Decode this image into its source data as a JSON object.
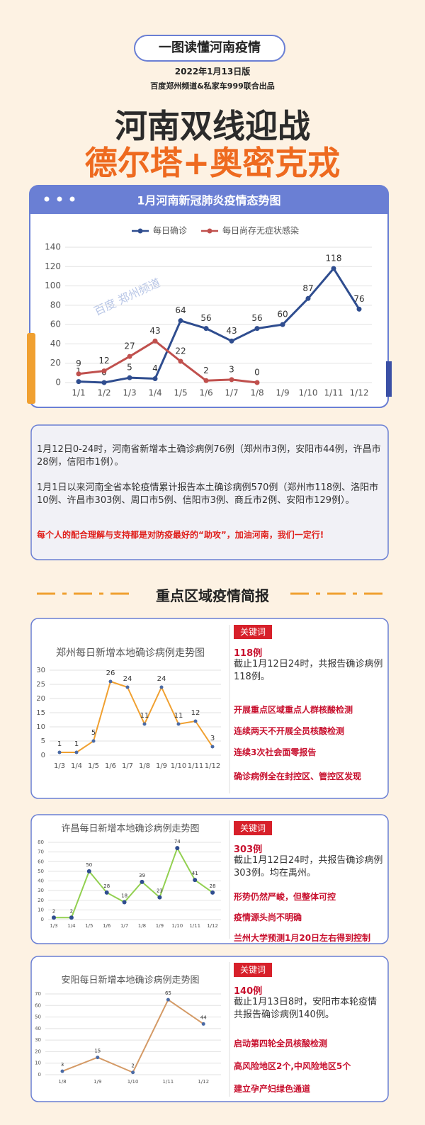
{
  "header": {
    "badge": "一图读懂河南疫情",
    "date": "2022年1月13日版",
    "source": "百度郑州频道&私家车999联合出品",
    "headline1": "河南双线迎战",
    "headline2": "德尔塔+奥密克戎"
  },
  "watermark": "百度 郑州频道",
  "chart_data": [
    {
      "type": "line",
      "title": "1月河南新冠肺炎疫情态势图",
      "categories": [
        "1/1",
        "1/2",
        "1/3",
        "1/4",
        "1/5",
        "1/6",
        "1/7",
        "1/8",
        "1/9",
        "1/10",
        "1/11",
        "1/12"
      ],
      "series": [
        {
          "name": "每日确诊",
          "color": "#2f4d8f",
          "values": [
            1,
            0,
            5,
            4,
            64,
            56,
            43,
            56,
            60,
            87,
            118,
            76
          ]
        },
        {
          "name": "每日尚存无症状感染",
          "color": "#c0504d",
          "values": [
            9,
            12,
            27,
            43,
            22,
            2,
            3,
            0,
            null,
            null,
            null,
            null
          ]
        }
      ],
      "ylim": [
        0,
        140
      ],
      "yticks": [
        0,
        20,
        40,
        60,
        80,
        100,
        120,
        140
      ],
      "grid": true,
      "legend": "top"
    },
    {
      "type": "line",
      "title": "郑州每日新增本地确诊病例走势图",
      "categories": [
        "1/3",
        "1/4",
        "1/5",
        "1/6",
        "1/7",
        "1/8",
        "1/9",
        "1/10",
        "1/11",
        "1/12"
      ],
      "values": [
        1,
        1,
        5,
        26,
        24,
        11,
        24,
        11,
        12,
        3
      ],
      "color": "#f0a030",
      "marker_color": "#4a6aa5",
      "ylim": [
        0,
        30
      ],
      "yticks": [
        0,
        5,
        10,
        15,
        20,
        25,
        30
      ],
      "grid": true
    },
    {
      "type": "line",
      "title": "许昌每日新增本地确诊病例走势图",
      "categories": [
        "1/3",
        "1/4",
        "1/5",
        "1/6",
        "1/7",
        "1/8",
        "1/9",
        "1/10",
        "1/11",
        "1/12"
      ],
      "values": [
        2,
        2,
        50,
        28,
        18,
        39,
        23,
        74,
        41,
        28
      ],
      "color": "#92d050",
      "marker_color": "#2f4d8f",
      "ylim": [
        0,
        80
      ],
      "yticks": [
        0,
        10,
        20,
        30,
        40,
        50,
        60,
        70,
        80
      ],
      "grid": true
    },
    {
      "type": "line",
      "title": "安阳每日新增本地确诊病例走势图",
      "categories": [
        "1/8",
        "1/9",
        "1/10",
        "1/11",
        "1/12"
      ],
      "values": [
        3,
        15,
        2,
        65,
        44
      ],
      "color": "#d49a66",
      "marker_color": "#4a6aa5",
      "ylim": [
        0,
        70
      ],
      "yticks": [
        0,
        10,
        20,
        30,
        40,
        50,
        60,
        70
      ],
      "grid": true
    }
  ],
  "summary": {
    "paragraphs": [
      "1月12日0-24时，河南省新增本土确诊病例76例（郑州市3例，安阳市44例，许昌市28例，信阳市1例）。",
      "1月1日以来河南全省本轮疫情累计报告本土确诊病例570例（郑州市118例、洛阳市10例、许昌市303例、周口市5例、信阳市3例、商丘市2例、安阳市129例）。"
    ],
    "slogan": "每个人的配合理解与支持都是对防疫最好的“助攻”，加油河南，我们一定行!"
  },
  "section_title": "重点区域疫情简报",
  "briefs": [
    {
      "tag": "关键词",
      "count": "118例",
      "detail": "截止1月12日24时，共报告确诊病例118例。",
      "points": [
        "开展重点区域重点人群核酸检测",
        "连续两天不开展全员核酸检测",
        "连续3次社会面零报告",
        "确诊病例全在封控区、管控区发现"
      ]
    },
    {
      "tag": "关键词",
      "count": "303例",
      "detail": "截止1月12日24时，共报告确诊病例303例。均在禹州。",
      "points": [
        "形势仍然严峻，但整体可控",
        "疫情源头尚不明确",
        "兰州大学预测1月20日左右得到控制"
      ]
    },
    {
      "tag": "关键词",
      "count": "140例",
      "detail": "截止1月13日8时，安阳市本轮疫情共报告确诊病例140例。",
      "points": [
        "启动第四轮全员核酸检测",
        "高风险地区2个,中风险地区5个",
        "建立孕产妇绿色通道"
      ]
    }
  ]
}
